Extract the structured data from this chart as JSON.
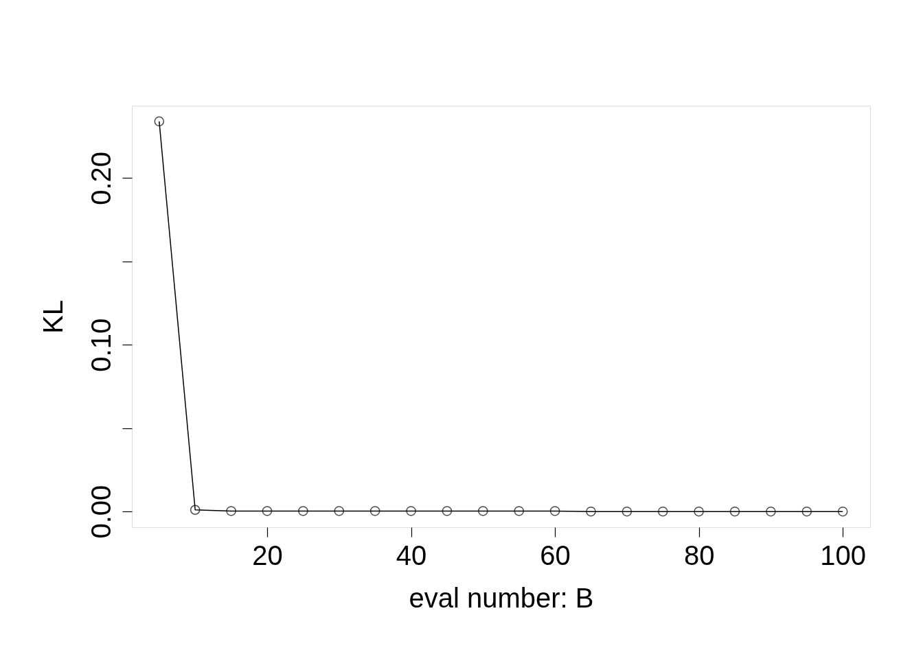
{
  "chart_data": {
    "type": "line",
    "xlabel": "eval number: B",
    "ylabel": "KL",
    "x": [
      5,
      10,
      15,
      20,
      25,
      30,
      35,
      40,
      45,
      50,
      55,
      60,
      65,
      70,
      75,
      80,
      85,
      90,
      95,
      100
    ],
    "series": [
      {
        "color": "#000000",
        "values": [
          0.234,
          0.001,
          0.0003,
          0.0003,
          0.0003,
          0.0003,
          0.0003,
          0.0003,
          0.0003,
          0.0003,
          0.0003,
          0.0003,
          0,
          0,
          0,
          0,
          0,
          0,
          0,
          0
        ]
      }
    ],
    "xlim": [
      1.2,
      103.8
    ],
    "xticks": [
      20,
      40,
      60,
      80,
      100
    ],
    "ylim": [
      -0.0094,
      0.2434
    ],
    "yticks": [
      {
        "value": 0,
        "label": "0.00"
      },
      {
        "value": 0.05,
        "label": null
      },
      {
        "value": 0.1,
        "label": "0.10"
      },
      {
        "value": 0.15,
        "label": null
      },
      {
        "value": 0.2,
        "label": "0.20"
      }
    ],
    "marker": "circle",
    "line_style": "solid",
    "grid": false
  }
}
